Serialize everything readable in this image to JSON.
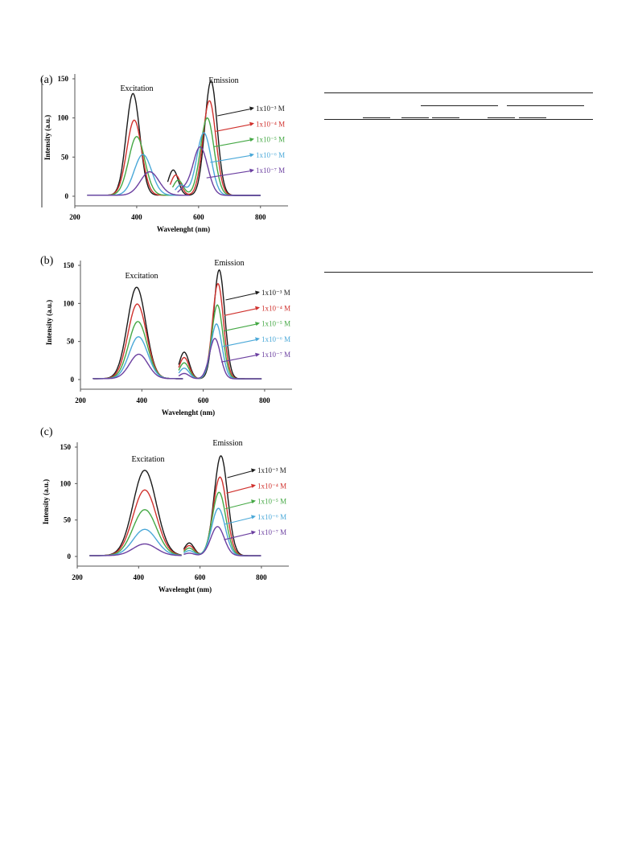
{
  "chart_data": [
    {
      "type": "line",
      "panel_label": "(a)",
      "xlabel": "Wavelenght (nm)",
      "ylabel": "Intensity (a.u.)",
      "xlim": [
        200,
        850
      ],
      "ylim": [
        0,
        150
      ],
      "xticks": [
        200,
        400,
        600,
        800
      ],
      "yticks": [
        0,
        50,
        100,
        150
      ],
      "annotations": [
        "Excitation",
        "Emission"
      ],
      "series": [
        {
          "name": "1x10⁻³ M",
          "color": "#1a1a1a",
          "excitation_peak": {
            "x": 388,
            "y": 130
          },
          "emission_peak": {
            "x": 640,
            "y": 146
          }
        },
        {
          "name": "1x10⁻⁴ M",
          "color": "#d0312d",
          "excitation_peak": {
            "x": 392,
            "y": 96
          },
          "emission_peak": {
            "x": 635,
            "y": 121
          }
        },
        {
          "name": "1x10⁻⁵ M",
          "color": "#45a845",
          "excitation_peak": {
            "x": 400,
            "y": 75
          },
          "emission_peak": {
            "x": 628,
            "y": 99
          }
        },
        {
          "name": "1x10⁻⁶ M",
          "color": "#4aa8d8",
          "excitation_peak": {
            "x": 420,
            "y": 52
          },
          "emission_peak": {
            "x": 617,
            "y": 80
          }
        },
        {
          "name": "1x10⁻⁷ M",
          "color": "#6b3fa0",
          "excitation_peak": {
            "x": 442,
            "y": 30
          },
          "emission_peak": {
            "x": 605,
            "y": 62
          }
        }
      ]
    },
    {
      "type": "line",
      "panel_label": "(b)",
      "xlabel": "Wavelenght (nm)",
      "ylabel": "Intensity (a.u.)",
      "xlim": [
        200,
        850
      ],
      "ylim": [
        0,
        150
      ],
      "xticks": [
        200,
        400,
        600,
        800
      ],
      "yticks": [
        0,
        50,
        100,
        150
      ],
      "annotations": [
        "Excitation",
        "Emission"
      ],
      "series": [
        {
          "name": "1x10⁻³ M",
          "color": "#1a1a1a",
          "excitation_peak": {
            "x": 383,
            "y": 120
          },
          "emission_peak": {
            "x": 652,
            "y": 143
          }
        },
        {
          "name": "1x10⁻⁴ M",
          "color": "#d0312d",
          "excitation_peak": {
            "x": 385,
            "y": 98
          },
          "emission_peak": {
            "x": 648,
            "y": 125
          }
        },
        {
          "name": "1x10⁻⁵ M",
          "color": "#45a845",
          "excitation_peak": {
            "x": 387,
            "y": 75
          },
          "emission_peak": {
            "x": 646,
            "y": 97
          }
        },
        {
          "name": "1x10⁻⁶ M",
          "color": "#4aa8d8",
          "excitation_peak": {
            "x": 389,
            "y": 55
          },
          "emission_peak": {
            "x": 643,
            "y": 72
          }
        },
        {
          "name": "1x10⁻⁷ M",
          "color": "#6b3fa0",
          "excitation_peak": {
            "x": 390,
            "y": 32
          },
          "emission_peak": {
            "x": 638,
            "y": 53
          }
        }
      ]
    },
    {
      "type": "line",
      "panel_label": "(c)",
      "xlabel": "Wavelenght (nm)",
      "ylabel": "Intensity (a.u.)",
      "xlim": [
        200,
        850
      ],
      "ylim": [
        0,
        150
      ],
      "xticks": [
        200,
        400,
        600,
        800
      ],
      "yticks": [
        0,
        50,
        100,
        150
      ],
      "annotations": [
        "Excitation",
        "Emission"
      ],
      "series": [
        {
          "name": "1x10⁻³ M",
          "color": "#1a1a1a",
          "excitation_peak": {
            "x": 420,
            "y": 117
          },
          "emission_peak": {
            "x": 668,
            "y": 137
          }
        },
        {
          "name": "1x10⁻⁴ M",
          "color": "#d0312d",
          "excitation_peak": {
            "x": 420,
            "y": 90
          },
          "emission_peak": {
            "x": 665,
            "y": 108
          }
        },
        {
          "name": "1x10⁻⁵ M",
          "color": "#45a845",
          "excitation_peak": {
            "x": 420,
            "y": 63
          },
          "emission_peak": {
            "x": 662,
            "y": 87
          }
        },
        {
          "name": "1x10⁻⁶ M",
          "color": "#4aa8d8",
          "excitation_peak": {
            "x": 420,
            "y": 36
          },
          "emission_peak": {
            "x": 660,
            "y": 65
          }
        },
        {
          "name": "1x10⁻⁷ M",
          "color": "#6b3fa0",
          "excitation_peak": {
            "x": 420,
            "y": 16
          },
          "emission_peak": {
            "x": 657,
            "y": 40
          }
        }
      ]
    }
  ]
}
